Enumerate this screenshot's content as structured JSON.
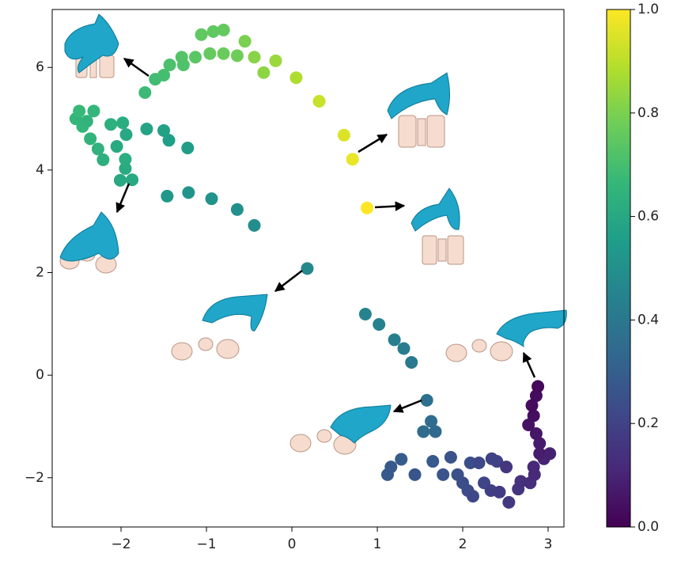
{
  "chart_data": {
    "type": "scatter",
    "x": [
      0.88,
      0.71,
      0.61,
      0.32,
      0.05,
      -0.19,
      -0.33,
      -0.44,
      -0.55,
      -0.64,
      -0.8,
      -0.96,
      -0.8,
      -0.92,
      -1.06,
      -1.13,
      -1.29,
      -1.27,
      -1.43,
      -1.5,
      -1.6,
      -1.72,
      -1.87,
      -2.01,
      -1.95,
      -1.95,
      -2.21,
      -2.27,
      -2.36,
      -2.45,
      -2.53,
      -2.49,
      -2.32,
      -2.4,
      -2.12,
      -1.98,
      -2.05,
      -1.94,
      -1.7,
      -1.5,
      -1.44,
      -1.22,
      -1.46,
      -1.21,
      -0.94,
      -0.64,
      -0.44,
      0.18,
      0.86,
      1.02,
      1.2,
      1.31,
      1.4,
      1.58,
      1.63,
      1.54,
      1.68,
      1.12,
      1.16,
      1.28,
      1.44,
      1.65,
      1.77,
      1.86,
      1.94,
      2.0,
      2.06,
      2.12,
      2.09,
      2.19,
      2.25,
      2.34,
      2.4,
      2.33,
      2.43,
      2.54,
      2.51,
      2.65,
      2.68,
      2.79,
      2.84,
      2.83,
      2.95,
      3.02,
      2.9,
      2.9,
      2.86,
      2.77,
      2.83,
      2.81,
      2.86,
      2.88
    ],
    "values": [
      3.26,
      4.21,
      4.68,
      5.34,
      5.8,
      6.13,
      5.9,
      6.2,
      6.51,
      6.23,
      6.27,
      6.27,
      6.73,
      6.7,
      6.64,
      6.2,
      6.2,
      6.05,
      6.05,
      5.85,
      5.77,
      5.51,
      3.81,
      3.8,
      4.03,
      4.21,
      4.2,
      4.41,
      4.61,
      4.85,
      5.0,
      5.15,
      5.15,
      4.95,
      4.89,
      4.92,
      4.46,
      4.69,
      4.8,
      4.77,
      4.58,
      4.43,
      3.49,
      3.56,
      3.44,
      3.23,
      2.92,
      2.08,
      1.19,
      0.99,
      0.69,
      0.52,
      0.25,
      -0.49,
      -0.9,
      -1.1,
      -1.1,
      -1.94,
      -1.79,
      -1.64,
      -1.94,
      -1.68,
      -1.94,
      -1.6,
      -1.94,
      -2.1,
      -2.25,
      -2.36,
      -1.71,
      -1.71,
      -2.1,
      -1.63,
      -1.68,
      -2.25,
      -2.28,
      -2.48,
      -1.79,
      -2.22,
      -2.07,
      -2.1,
      -1.94,
      -1.79,
      -1.63,
      -1.53,
      -1.53,
      -1.33,
      -1.14,
      -0.97,
      -0.79,
      -0.59,
      -0.4,
      -0.22
    ],
    "color_values": [
      1.0,
      0.97,
      0.95,
      0.92,
      0.88,
      0.85,
      0.83,
      0.82,
      0.8,
      0.78,
      0.77,
      0.76,
      0.76,
      0.75,
      0.75,
      0.74,
      0.73,
      0.72,
      0.71,
      0.7,
      0.69,
      0.68,
      0.6,
      0.6,
      0.61,
      0.62,
      0.63,
      0.64,
      0.65,
      0.66,
      0.66,
      0.67,
      0.66,
      0.65,
      0.63,
      0.62,
      0.61,
      0.6,
      0.58,
      0.57,
      0.56,
      0.55,
      0.53,
      0.52,
      0.51,
      0.5,
      0.49,
      0.47,
      0.45,
      0.44,
      0.43,
      0.42,
      0.41,
      0.37,
      0.35,
      0.35,
      0.34,
      0.28,
      0.28,
      0.29,
      0.27,
      0.28,
      0.26,
      0.26,
      0.25,
      0.24,
      0.23,
      0.22,
      0.24,
      0.22,
      0.21,
      0.2,
      0.2,
      0.19,
      0.18,
      0.17,
      0.16,
      0.15,
      0.14,
      0.13,
      0.12,
      0.11,
      0.1,
      0.09,
      0.08,
      0.07,
      0.06,
      0.05,
      0.04,
      0.03,
      0.03,
      0.02
    ],
    "colormap": "viridis",
    "xlim": [
      -2.806,
      3.185
    ],
    "xticks": [
      {
        "value": -2,
        "label": "−2"
      },
      {
        "value": -1,
        "label": "−1"
      },
      0,
      1,
      2,
      3
    ],
    "ylim": [
      -2.96,
      7.13
    ],
    "yticks": [
      {
        "value": -2,
        "label": "−2"
      },
      0,
      2,
      4,
      6
    ],
    "clim": [
      0,
      1
    ],
    "cticks": [
      {
        "value": 0,
        "label": "0.0"
      },
      0.2,
      0.4,
      0.6,
      0.8,
      {
        "value": 1,
        "label": "1.0"
      }
    ]
  }
}
